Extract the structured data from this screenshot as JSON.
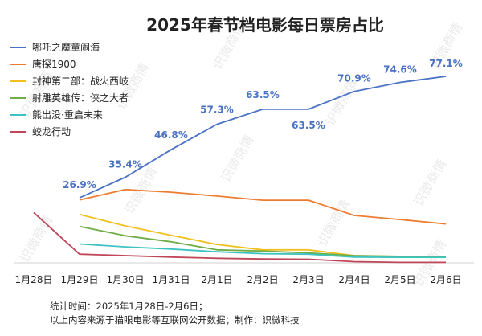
{
  "chart_data": {
    "type": "line",
    "title": "2025年春节档电影每日票房占比",
    "categories": [
      "1月28日",
      "1月29日",
      "1月30日",
      "1月31日",
      "2月1日",
      "2月2日",
      "2月3日",
      "2月4日",
      "2月5日",
      "2月6日"
    ],
    "unit": "%",
    "ylim": [
      0,
      80
    ],
    "grid": false,
    "legend_position": "top-left",
    "series": [
      {
        "name": "哪吒之魔童闹海",
        "color": "#4a72c4",
        "labeled": true,
        "values": [
          null,
          26.9,
          35.4,
          46.8,
          57.3,
          63.5,
          63.5,
          70.9,
          74.6,
          77.1
        ],
        "labels": [
          "",
          "26.9%",
          "35.4%",
          "46.8%",
          "57.3%",
          "63.5%",
          "63.5%",
          "70.9%",
          "74.6%",
          "77.1%"
        ]
      },
      {
        "name": "唐探1900",
        "color": "#ed7d31",
        "labeled": false,
        "values": [
          null,
          26.0,
          30.3,
          29.2,
          27.6,
          25.9,
          25.9,
          19.6,
          17.9,
          16.1
        ]
      },
      {
        "name": "封神第二部：战火西岐",
        "color": "#f0c020",
        "labeled": false,
        "values": [
          null,
          20.0,
          15.3,
          11.4,
          7.6,
          5.4,
          5.4,
          3.0,
          2.6,
          2.6
        ]
      },
      {
        "name": "射雕英雄传：侠之大者",
        "color": "#70ad47",
        "labeled": false,
        "values": [
          null,
          15.1,
          11.2,
          8.7,
          5.4,
          4.9,
          4.1,
          3.0,
          2.7,
          2.6
        ]
      },
      {
        "name": "熊出没·重启未来",
        "color": "#3ec3c3",
        "labeled": false,
        "values": [
          null,
          7.8,
          6.6,
          5.7,
          4.6,
          3.8,
          3.6,
          2.4,
          2.3,
          2.3
        ]
      },
      {
        "name": "蛟龙行动",
        "color": "#c0475a",
        "labeled": false,
        "values": [
          20.8,
          3.6,
          3.0,
          2.4,
          1.9,
          1.6,
          1.5,
          0.5,
          0.2,
          0.2
        ]
      }
    ]
  },
  "watermark_text": "识微商情",
  "footer": {
    "line1": "统计时间：2025年1月28日-2月6日；",
    "line2": "以上内容来源于猫眼电影等互联网公开数据；制作：识微科技"
  }
}
